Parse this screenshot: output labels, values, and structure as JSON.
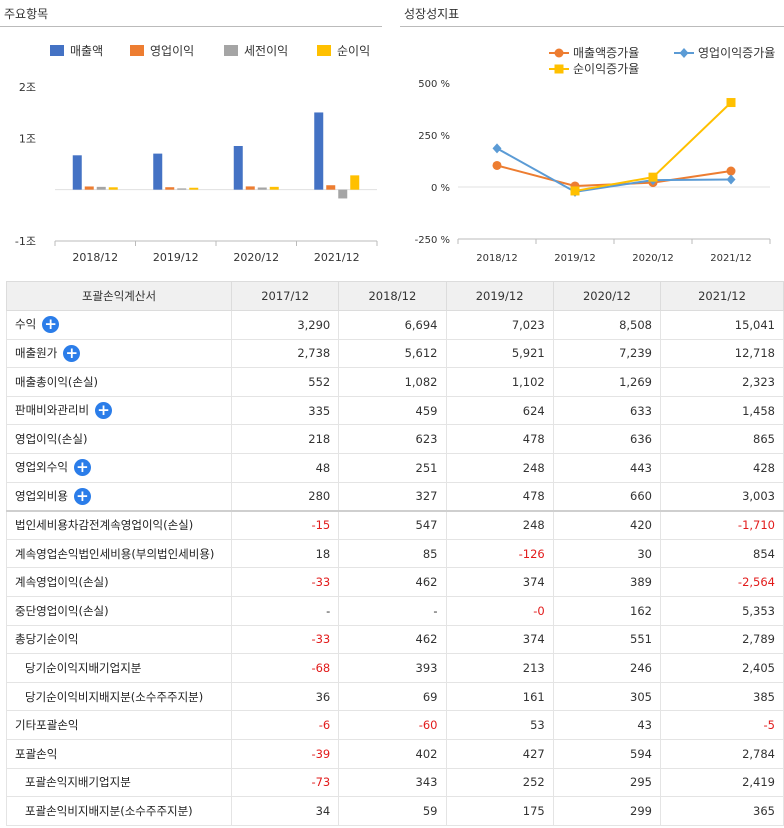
{
  "panels": {
    "left_title": "주요항목",
    "right_title": "성장성지표"
  },
  "chart_data": [
    {
      "type": "bar",
      "categories": [
        "2018/12",
        "2019/12",
        "2020/12",
        "2021/12"
      ],
      "series": [
        {
          "name": "매출액",
          "color": "#4472c4",
          "values": [
            6694,
            7023,
            8508,
            15041
          ]
        },
        {
          "name": "영업이익",
          "color": "#ed7d31",
          "values": [
            623,
            478,
            636,
            865
          ]
        },
        {
          "name": "세전이익",
          "color": "#a5a5a5",
          "values": [
            547,
            248,
            420,
            -1710
          ]
        },
        {
          "name": "순이익",
          "color": "#ffc000",
          "values": [
            462,
            374,
            551,
            2789
          ]
        }
      ],
      "ylim": [
        -10000,
        20000
      ],
      "yticks": [
        {
          "value": 20000,
          "label": "2조"
        },
        {
          "value": 10000,
          "label": "1조"
        },
        {
          "value": 0,
          "label": ""
        },
        {
          "value": -10000,
          "label": "-1조"
        }
      ],
      "legend": "top"
    },
    {
      "type": "line",
      "categories": [
        "2018/12",
        "2019/12",
        "2020/12",
        "2021/12"
      ],
      "series": [
        {
          "name": "매출액증가율",
          "color": "#ed7d31",
          "marker": "circle",
          "values": [
            103.5,
            4.9,
            21.1,
            76.8
          ]
        },
        {
          "name": "영업이익증가율",
          "color": "#5b9bd5",
          "marker": "diamond",
          "values": [
            185.8,
            -23.3,
            33.1,
            36.0
          ]
        },
        {
          "name": "순이익증가율",
          "color": "#ffc000",
          "marker": "square",
          "values": [
            null,
            -19.0,
            47.3,
            406.1
          ]
        }
      ],
      "ylim": [
        -250,
        500
      ],
      "yticks": [
        {
          "value": 500,
          "label": "500 %"
        },
        {
          "value": 250,
          "label": "250 %"
        },
        {
          "value": 0,
          "label": "0 %"
        },
        {
          "value": -250,
          "label": "-250 %"
        }
      ],
      "legend": "top"
    }
  ],
  "table": {
    "header": [
      "포괄손익계산서",
      "2017/12",
      "2018/12",
      "2019/12",
      "2020/12",
      "2021/12"
    ],
    "rows": [
      {
        "label": "수익",
        "plus": true,
        "values": [
          "3,290",
          "6,694",
          "7,023",
          "8,508",
          "15,041"
        ]
      },
      {
        "label": "매출원가",
        "plus": true,
        "values": [
          "2,738",
          "5,612",
          "5,921",
          "7,239",
          "12,718"
        ]
      },
      {
        "label": "매출총이익(손실)",
        "values": [
          "552",
          "1,082",
          "1,102",
          "1,269",
          "2,323"
        ]
      },
      {
        "label": "판매비와관리비",
        "plus": true,
        "values": [
          "335",
          "459",
          "624",
          "633",
          "1,458"
        ]
      },
      {
        "label": "영업이익(손실)",
        "values": [
          "218",
          "623",
          "478",
          "636",
          "865"
        ]
      },
      {
        "label": "영업외수익",
        "plus": true,
        "values": [
          "48",
          "251",
          "248",
          "443",
          "428"
        ]
      },
      {
        "label": "영업외비용",
        "plus": true,
        "values": [
          "280",
          "327",
          "478",
          "660",
          "3,003"
        ]
      },
      {
        "label": "법인세비용차감전계속영업이익(손실)",
        "sep": true,
        "values": [
          "-15",
          "547",
          "248",
          "420",
          "-1,710"
        ]
      },
      {
        "label": "계속영업손익법인세비용(부의법인세비용)",
        "values": [
          "18",
          "85",
          "-126",
          "30",
          "854"
        ]
      },
      {
        "label": "계속영업이익(손실)",
        "values": [
          "-33",
          "462",
          "374",
          "389",
          "-2,564"
        ]
      },
      {
        "label": "중단영업이익(손실)",
        "values": [
          "-",
          "-",
          "-0",
          "162",
          "5,353"
        ]
      },
      {
        "label": "총당기순이익",
        "values": [
          "-33",
          "462",
          "374",
          "551",
          "2,789"
        ]
      },
      {
        "label": "당기순이익지배기업지분",
        "sub": true,
        "values": [
          "-68",
          "393",
          "213",
          "246",
          "2,405"
        ]
      },
      {
        "label": "당기순이익비지배지분(소수주주지분)",
        "sub": true,
        "values": [
          "36",
          "69",
          "161",
          "305",
          "385"
        ]
      },
      {
        "label": "기타포괄손익",
        "values": [
          "-6",
          "-60",
          "53",
          "43",
          "-5"
        ]
      },
      {
        "label": "포괄손익",
        "values": [
          "-39",
          "402",
          "427",
          "594",
          "2,784"
        ]
      },
      {
        "label": "포괄손익지배기업지분",
        "sub": true,
        "values": [
          "-73",
          "343",
          "252",
          "295",
          "2,419"
        ]
      },
      {
        "label": "포괄손익비지배지분(소수주주지분)",
        "sub": true,
        "values": [
          "34",
          "59",
          "175",
          "299",
          "365"
        ]
      }
    ]
  }
}
